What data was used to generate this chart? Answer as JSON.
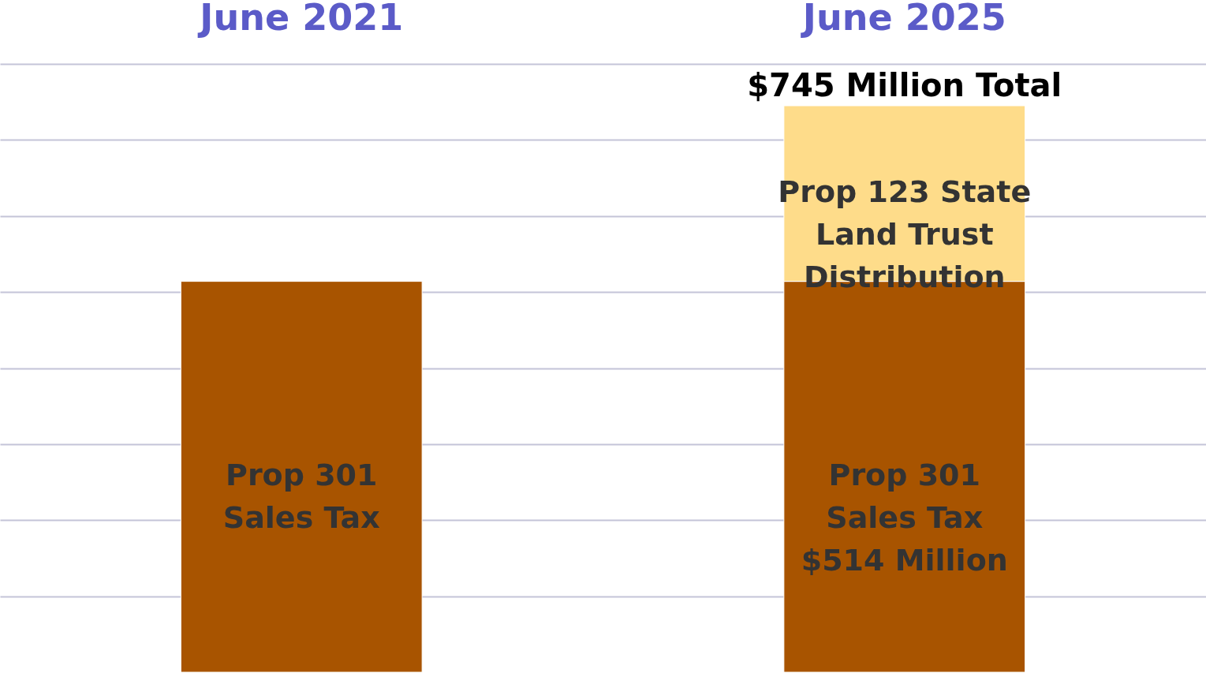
{
  "chart_data": {
    "type": "bar",
    "stacked": true,
    "categories": [
      "June 2021",
      "June 2025"
    ],
    "series": [
      {
        "name": "Prop 301\nSales Tax",
        "color": "#a85400",
        "values": [
          514,
          514
        ],
        "value_labels": [
          null,
          "$514 Million"
        ]
      },
      {
        "name": "Prop 123 State\nLand Trust\nDistribution",
        "color": "#fedc8a",
        "values": [
          null,
          231
        ]
      }
    ],
    "totals": [
      null,
      "$745 Million Total"
    ],
    "ylim": [
      0,
      800
    ],
    "yticks": [
      {
        "value": 100,
        "label": null
      },
      {
        "value": 200,
        "label": null
      },
      {
        "value": 300,
        "label": null
      },
      {
        "value": 400,
        "label": null
      },
      {
        "value": 500,
        "label": null
      },
      {
        "value": 600,
        "label": null
      },
      {
        "value": 700,
        "label": null
      },
      {
        "value": 800,
        "label": null
      }
    ],
    "grid": "y",
    "legend": false,
    "tick_labels": "x"
  }
}
